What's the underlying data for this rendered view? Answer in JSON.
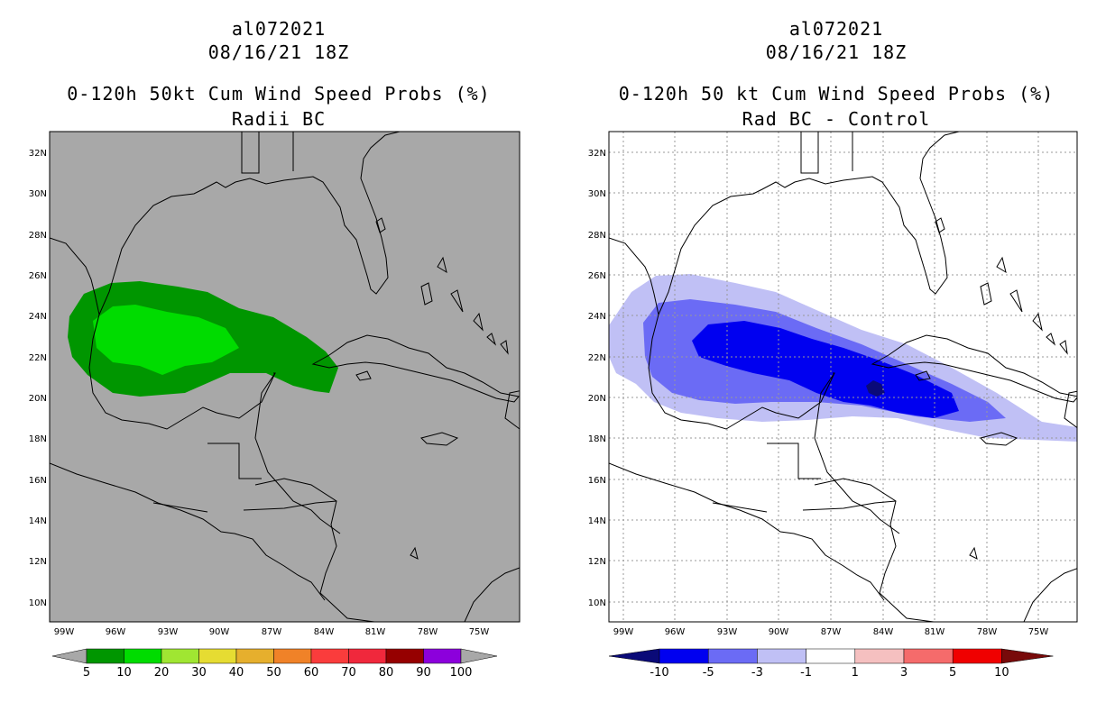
{
  "left_panel": {
    "storm_id": "al072021",
    "datetime": "08/16/21 18Z",
    "product": "0-120h 50kt Cum Wind Speed Probs (%)",
    "subtitle": "Radii BC",
    "background_color": "#a8a8a8",
    "colorbar": {
      "labels": [
        "5",
        "10",
        "20",
        "30",
        "40",
        "50",
        "60",
        "70",
        "80",
        "90",
        "100"
      ],
      "colors": [
        "#009600",
        "#00dc00",
        "#a0e632",
        "#e6dc32",
        "#e6af2d",
        "#f08228",
        "#fa3c3c",
        "#f0283c",
        "#960000",
        "#8c00dc"
      ],
      "end_color": "#a8a8a8"
    },
    "contours": [
      {
        "level": "5-10",
        "color": "#009600"
      },
      {
        "level": "10-20",
        "color": "#00dc00"
      }
    ]
  },
  "right_panel": {
    "storm_id": "al072021",
    "datetime": "08/16/21 18Z",
    "product": "0-120h 50 kt Cum Wind Speed Probs (%)",
    "subtitle": "Rad BC - Control",
    "background_color": "#ffffff",
    "colorbar": {
      "labels": [
        "-10",
        "-5",
        "-3",
        "-1",
        "1",
        "3",
        "5",
        "10"
      ],
      "colors": [
        "#0a0a78",
        "#0000f0",
        "#6b6bf5",
        "#c0c0f5",
        "#ffffff",
        "#f5c0c0",
        "#f56b6b",
        "#f00000",
        "#780a0a"
      ]
    },
    "contours": [
      {
        "level": "-1 to -3",
        "color": "#c0c0f5"
      },
      {
        "level": "-3 to -5",
        "color": "#6b6bf5"
      },
      {
        "level": "-5 to -10",
        "color": "#0000f0"
      },
      {
        "level": "< -10",
        "color": "#0a0a78"
      }
    ]
  },
  "map": {
    "lat_labels": [
      "32N",
      "30N",
      "28N",
      "26N",
      "24N",
      "22N",
      "20N",
      "18N",
      "16N",
      "14N",
      "12N",
      "10N"
    ],
    "lon_labels": [
      "99W",
      "96W",
      "93W",
      "90W",
      "87W",
      "84W",
      "81W",
      "78W",
      "75W"
    ]
  }
}
